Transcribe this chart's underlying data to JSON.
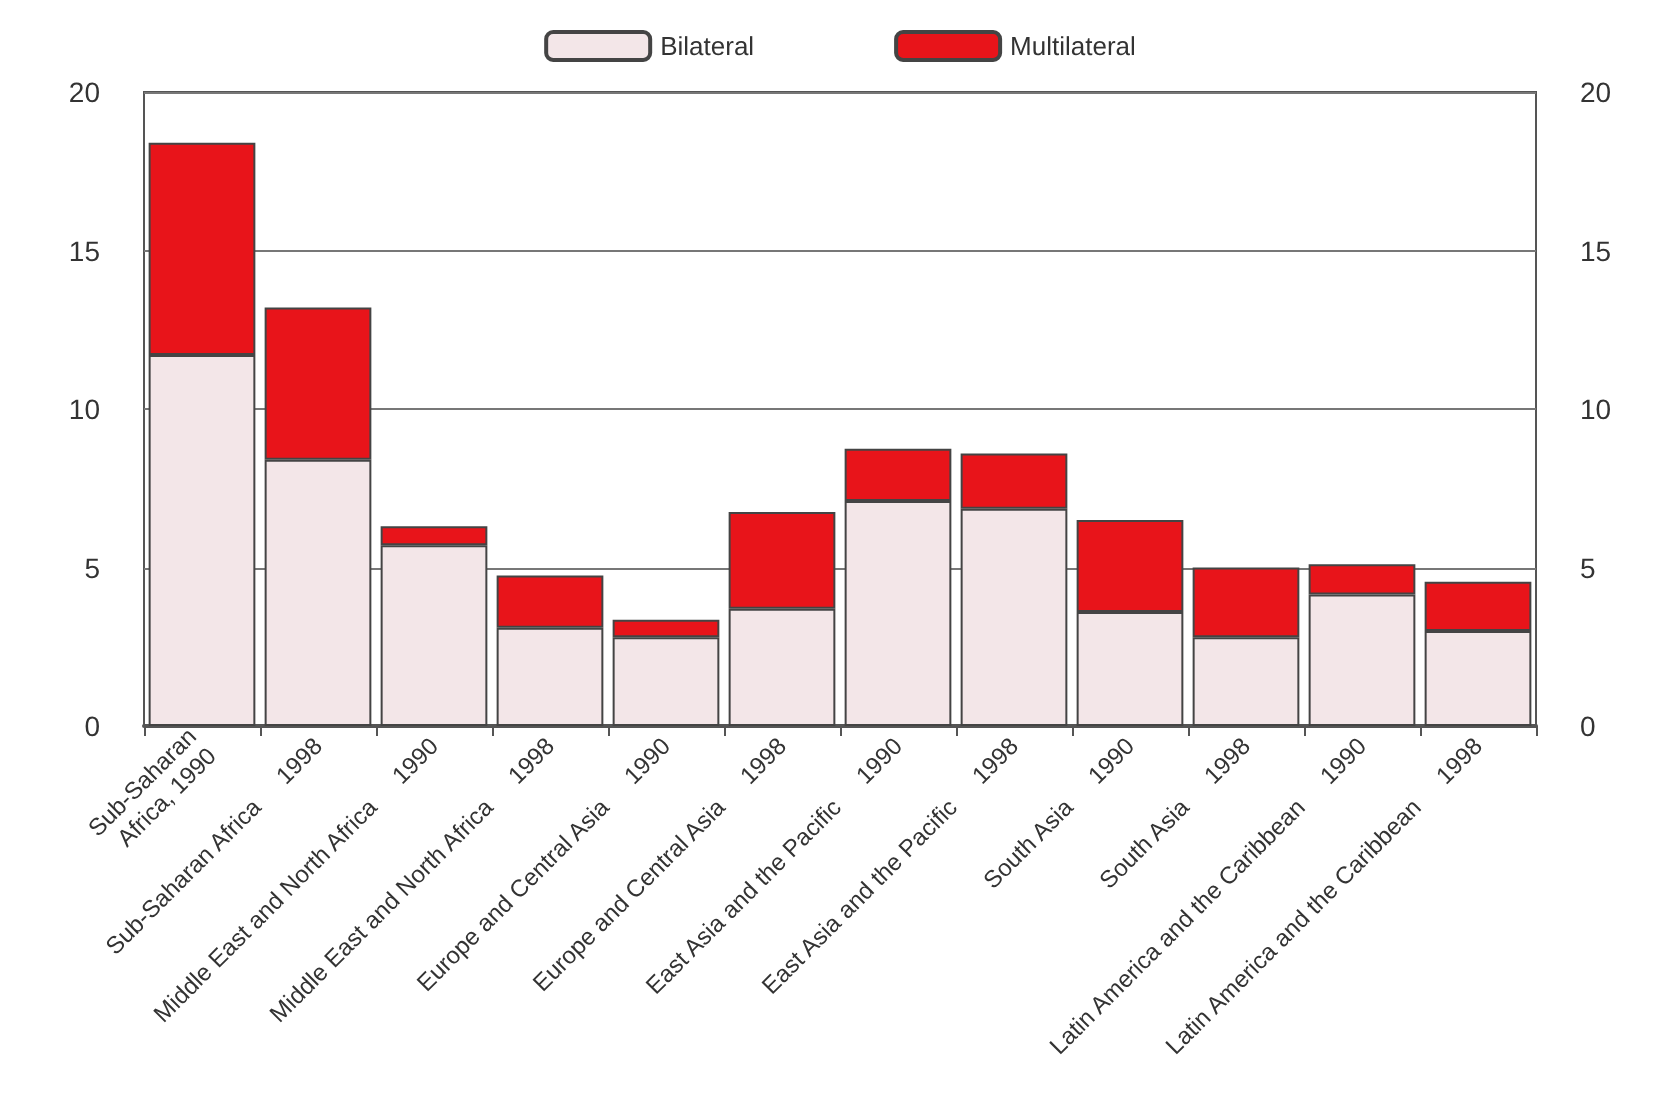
{
  "chart_data": {
    "type": "bar",
    "stacked": true,
    "categories": [
      "Sub-Saharan\nAfrica, 1990",
      "Sub-Saharan Africa     1998",
      "Middle East and North Africa     1990",
      "Middle East and North Africa     1998",
      "Europe and Central Asia     1990",
      "Europe and Central Asia     1998",
      "East Asia and the Pacific     1990",
      "East Asia and the Pacific     1998",
      "South Asia     1990",
      "South Asia     1998",
      "Latin America and the Caribbean     1990",
      "Latin America and the Caribbean     1998"
    ],
    "series": [
      {
        "name": "Bilateral",
        "color": "#f3e6e8",
        "values": [
          11.7,
          8.4,
          5.7,
          3.1,
          2.8,
          3.7,
          7.1,
          6.85,
          3.6,
          2.8,
          4.15,
          3.0
        ]
      },
      {
        "name": "Multilateral",
        "color": "#e8141a",
        "values": [
          6.7,
          4.8,
          0.6,
          1.65,
          0.55,
          3.05,
          1.65,
          1.75,
          2.9,
          2.2,
          0.95,
          1.55
        ]
      }
    ],
    "ylim": [
      0,
      20
    ],
    "yticks": [
      0,
      5,
      10,
      15,
      20
    ],
    "y2lim": [
      0,
      20
    ],
    "y2ticks": [
      0,
      5,
      10,
      15,
      20
    ],
    "grid": "y",
    "legend": "top"
  }
}
